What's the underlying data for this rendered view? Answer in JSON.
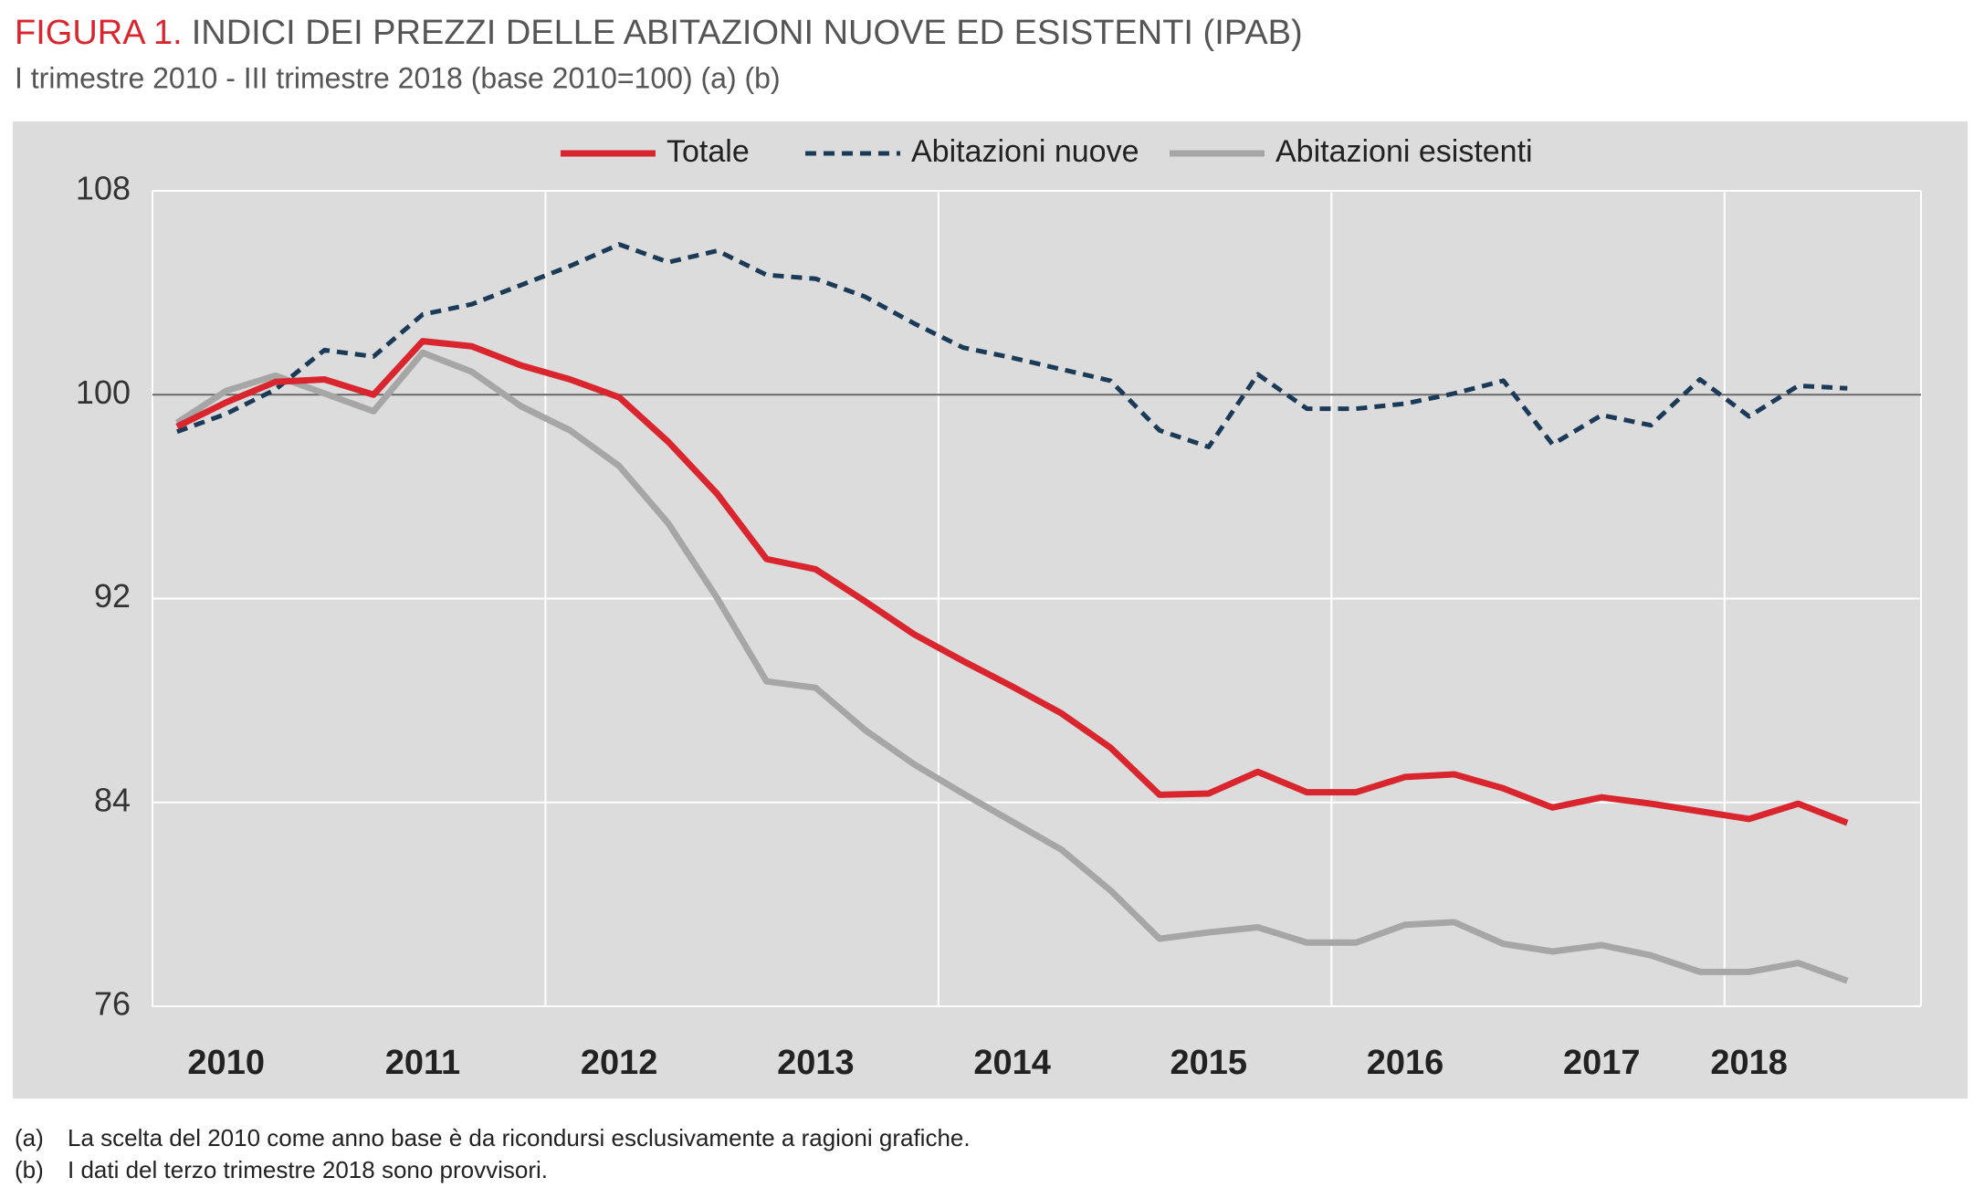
{
  "chart_data": {
    "type": "line",
    "title_prefix": "FIGURA 1.",
    "title": "INDICI DEI PREZZI DELLE ABITAZIONI NUOVE ED ESISTENTI (IPAB)",
    "subtitle": "I trimestre 2010 - III trimestre 2018 (base 2010=100) (a) (b)",
    "categories": [
      null,
      "2010",
      null,
      null,
      null,
      "2011",
      null,
      null,
      null,
      "2012",
      null,
      null,
      null,
      "2013",
      null,
      null,
      null,
      "2014",
      null,
      null,
      null,
      "2015",
      null,
      null,
      null,
      "2016",
      null,
      null,
      null,
      "2017",
      null,
      null,
      "2018",
      null,
      null
    ],
    "series": [
      {
        "name": "Totale",
        "color": "#d9262e",
        "style": "solid",
        "values": [
          98.75,
          99.7,
          100.5,
          100.6,
          100.0,
          102.1,
          101.9,
          101.15,
          100.6,
          99.9,
          98.15,
          96.1,
          93.55,
          93.15,
          91.9,
          90.6,
          89.55,
          88.55,
          87.5,
          86.15,
          84.3,
          84.35,
          85.2,
          84.4,
          84.4,
          85.0,
          85.1,
          84.55,
          83.8,
          84.2,
          83.95,
          83.65,
          83.35,
          83.95,
          83.2
        ]
      },
      {
        "name": "Abitazioni nuove",
        "color": "#1b3a57",
        "style": "dashed",
        "values": [
          98.55,
          99.25,
          100.2,
          101.75,
          101.5,
          103.15,
          103.55,
          104.3,
          105.05,
          105.9,
          105.2,
          105.65,
          104.7,
          104.55,
          103.85,
          102.8,
          101.85,
          101.45,
          101.0,
          100.55,
          98.6,
          97.95,
          100.8,
          99.45,
          99.45,
          99.65,
          100.05,
          100.55,
          98.05,
          99.2,
          98.8,
          100.6,
          99.15,
          100.35,
          100.25
        ]
      },
      {
        "name": "Abitazioni esistenti",
        "color": "#a6a6a6",
        "style": "solid",
        "values": [
          98.9,
          100.15,
          100.75,
          100.05,
          99.35,
          101.65,
          100.9,
          99.55,
          98.6,
          97.2,
          94.95,
          92.0,
          88.75,
          88.5,
          86.85,
          85.5,
          84.35,
          83.25,
          82.15,
          80.55,
          78.65,
          78.9,
          79.1,
          78.5,
          78.5,
          79.2,
          79.3,
          78.45,
          78.15,
          78.4,
          78.0,
          77.35,
          77.35,
          77.7,
          77.0
        ]
      }
    ],
    "ylim": [
      76,
      108
    ],
    "yticks": [
      76,
      84,
      92,
      100,
      108
    ],
    "grid": true,
    "reference_line": 100,
    "notes": [
      {
        "marker": "(a)",
        "text": "La scelta del 2010 come anno base è da ricondursi esclusivamente a ragioni grafiche."
      },
      {
        "marker": "(b)",
        "text": "I dati del terzo trimestre 2018 sono provvisori."
      }
    ]
  }
}
